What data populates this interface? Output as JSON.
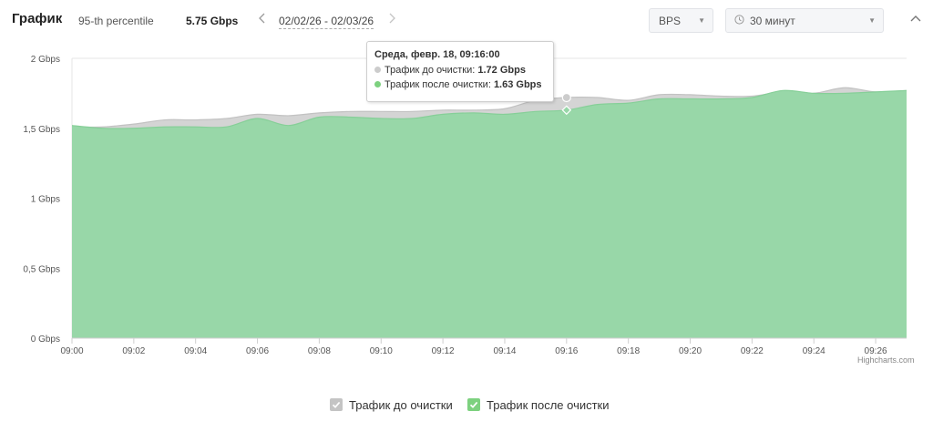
{
  "header": {
    "title": "График",
    "percentile_label": "95-th percentile",
    "percentile_value": "5.75 Gbps",
    "date_range": "02/02/26 - 02/03/26",
    "units_select": "BPS",
    "interval_select": "30 минут",
    "icons": [
      "chevron-left-icon",
      "chevron-right-icon",
      "caret-down-icon",
      "clock-icon",
      "chevron-up-icon"
    ]
  },
  "tooltip": {
    "header": "Среда, февр. 18, 09:16:00",
    "rows": [
      {
        "label": "Трафик до очистки:",
        "value": "1.72 Gbps",
        "color": "#cccccc"
      },
      {
        "label": "Трафик после очистки:",
        "value": "1.63 Gbps",
        "color": "#7dd17f"
      }
    ]
  },
  "credits": "Highcharts.com",
  "legend": [
    {
      "label": "Трафик до очистки",
      "color": "#c4c4c4"
    },
    {
      "label": "Трафик после очистки",
      "color": "#7dd17f"
    }
  ],
  "chart_data": {
    "type": "area",
    "x_unit": "minutes",
    "x_start": "09:00",
    "x_range": [
      0,
      27
    ],
    "ylim": [
      0,
      2
    ],
    "y_ticks": [
      {
        "value": 0,
        "label": "0 Gbps"
      },
      {
        "value": 0.5,
        "label": "0,5 Gbps"
      },
      {
        "value": 1,
        "label": "1 Gbps"
      },
      {
        "value": 1.5,
        "label": "1,5 Gbps"
      },
      {
        "value": 2,
        "label": "2 Gbps"
      }
    ],
    "x_ticks": [
      {
        "value": 0,
        "label": "09:00"
      },
      {
        "value": 2,
        "label": "09:02"
      },
      {
        "value": 4,
        "label": "09:04"
      },
      {
        "value": 6,
        "label": "09:06"
      },
      {
        "value": 8,
        "label": "09:08"
      },
      {
        "value": 10,
        "label": "09:10"
      },
      {
        "value": 12,
        "label": "09:12"
      },
      {
        "value": 14,
        "label": "09:14"
      },
      {
        "value": 16,
        "label": "09:16"
      },
      {
        "value": 18,
        "label": "09:18"
      },
      {
        "value": 20,
        "label": "09:20"
      },
      {
        "value": 22,
        "label": "09:22"
      },
      {
        "value": 24,
        "label": "09:24"
      },
      {
        "value": 26,
        "label": "09:26"
      }
    ],
    "colors": {
      "before": "#d4d4d4",
      "after": "#98d7a8",
      "before_line": "#c2c2c2",
      "after_line": "#86cf98"
    },
    "series": [
      {
        "name": "Трафик до очистки",
        "x": [
          0,
          1,
          2,
          3,
          4,
          5,
          6,
          7,
          8,
          9,
          10,
          11,
          12,
          13,
          14,
          15,
          16,
          17,
          18,
          19,
          20,
          21,
          22,
          23,
          24,
          25,
          26,
          27
        ],
        "values": [
          1.51,
          1.51,
          1.53,
          1.56,
          1.56,
          1.57,
          1.6,
          1.59,
          1.61,
          1.62,
          1.62,
          1.62,
          1.63,
          1.63,
          1.64,
          1.7,
          1.72,
          1.72,
          1.7,
          1.74,
          1.74,
          1.73,
          1.73,
          1.76,
          1.75,
          1.79,
          1.76,
          1.77
        ]
      },
      {
        "name": "Трафик после очистки",
        "x": [
          0,
          1,
          2,
          3,
          4,
          5,
          6,
          7,
          8,
          9,
          10,
          11,
          12,
          13,
          14,
          15,
          16,
          17,
          18,
          19,
          20,
          21,
          22,
          23,
          24,
          25,
          26,
          27
        ],
        "values": [
          1.52,
          1.5,
          1.5,
          1.51,
          1.51,
          1.51,
          1.57,
          1.52,
          1.58,
          1.58,
          1.57,
          1.57,
          1.6,
          1.61,
          1.6,
          1.62,
          1.63,
          1.67,
          1.68,
          1.71,
          1.71,
          1.71,
          1.72,
          1.77,
          1.75,
          1.75,
          1.76,
          1.77
        ]
      }
    ],
    "hover_x": 16
  }
}
